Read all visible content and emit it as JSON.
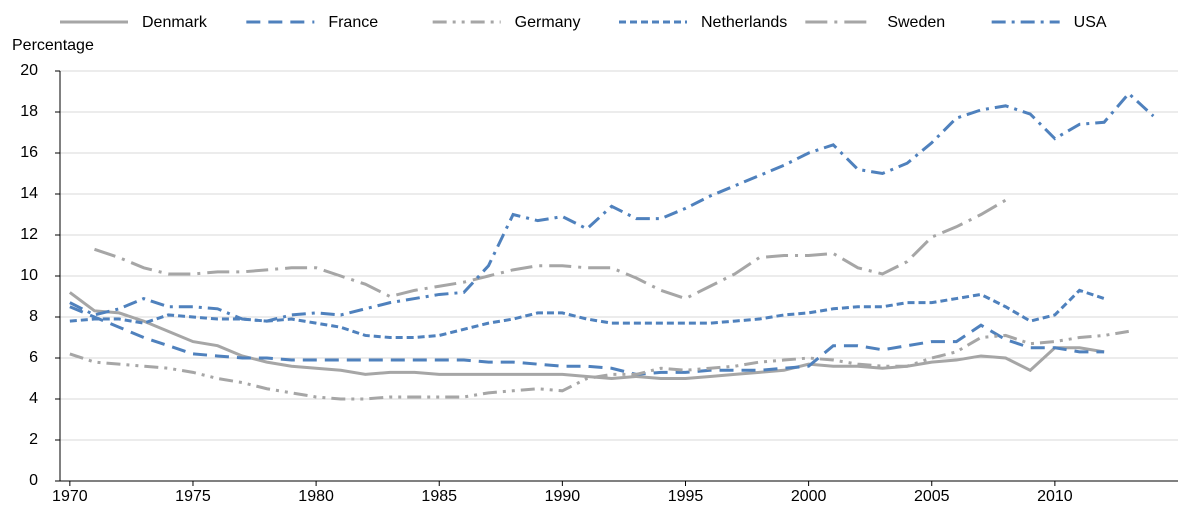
{
  "chart_data": {
    "type": "line",
    "y_label": "Percentage",
    "x": [
      1970,
      1971,
      1972,
      1973,
      1974,
      1975,
      1976,
      1977,
      1978,
      1979,
      1980,
      1981,
      1982,
      1983,
      1984,
      1985,
      1986,
      1987,
      1988,
      1989,
      1990,
      1991,
      1992,
      1993,
      1994,
      1995,
      1996,
      1997,
      1998,
      1999,
      2000,
      2001,
      2002,
      2003,
      2004,
      2005,
      2006,
      2007,
      2008,
      2009,
      2010,
      2011,
      2012,
      2013,
      2014
    ],
    "xlim": [
      1969.6,
      2015
    ],
    "xticks": [
      1970,
      1975,
      1980,
      1985,
      1990,
      1995,
      2000,
      2005,
      2010
    ],
    "ylim": [
      0,
      20
    ],
    "yticks": [
      0,
      2,
      4,
      6,
      8,
      10,
      12,
      14,
      16,
      18,
      20
    ],
    "grid": true,
    "legend": "top",
    "series": [
      {
        "name": "Denmark",
        "color": "#a6a6a6",
        "dash": "solid",
        "values": [
          9.2,
          8.3,
          8.2,
          7.8,
          7.3,
          6.8,
          6.6,
          6.1,
          5.8,
          5.6,
          5.5,
          5.4,
          5.2,
          5.3,
          5.3,
          5.2,
          5.2,
          5.2,
          5.2,
          5.2,
          5.2,
          5.1,
          5.0,
          5.1,
          5.0,
          5.0,
          5.1,
          5.2,
          5.3,
          5.4,
          5.7,
          5.6,
          5.6,
          5.5,
          5.6,
          5.8,
          5.9,
          6.1,
          6.0,
          5.4,
          6.5,
          6.5,
          6.3,
          null,
          null
        ]
      },
      {
        "name": "France",
        "color": "#4f81bd",
        "dash": "dash",
        "values": [
          8.5,
          8.0,
          7.5,
          7.0,
          6.6,
          6.2,
          6.1,
          6.0,
          6.0,
          5.9,
          5.9,
          5.9,
          5.9,
          5.9,
          5.9,
          5.9,
          5.9,
          5.8,
          5.8,
          5.7,
          5.6,
          5.6,
          5.5,
          5.2,
          5.3,
          5.3,
          5.4,
          5.4,
          5.4,
          5.5,
          5.6,
          6.6,
          6.6,
          6.4,
          6.6,
          6.8,
          6.8,
          7.6,
          6.9,
          6.5,
          6.5,
          6.3,
          6.3,
          null,
          null
        ]
      },
      {
        "name": "Germany",
        "color": "#a6a6a6",
        "dash": "dashdotdot",
        "values": [
          6.2,
          5.8,
          5.7,
          5.6,
          5.5,
          5.3,
          5.0,
          4.8,
          4.5,
          4.3,
          4.1,
          4.0,
          4.0,
          4.1,
          4.1,
          4.1,
          4.1,
          4.3,
          4.4,
          4.5,
          4.4,
          5.0,
          5.2,
          5.2,
          5.5,
          5.4,
          5.5,
          5.6,
          5.8,
          5.9,
          6.0,
          5.9,
          5.7,
          5.6,
          5.6,
          6.0,
          6.3,
          7.0,
          7.1,
          6.7,
          6.8,
          7.0,
          7.1,
          7.3,
          null
        ]
      },
      {
        "name": "Netherlands",
        "color": "#4f81bd",
        "dash": "shortdash",
        "values": [
          7.8,
          7.9,
          7.9,
          7.7,
          8.1,
          8.0,
          7.9,
          7.9,
          7.8,
          7.9,
          7.7,
          7.5,
          7.1,
          7.0,
          7.0,
          7.1,
          7.4,
          7.7,
          7.9,
          8.2,
          8.2,
          7.9,
          7.7,
          7.7,
          7.7,
          7.7,
          7.7,
          7.8,
          7.9,
          8.1,
          8.2,
          8.4,
          8.5,
          8.5,
          8.7,
          8.7,
          8.9,
          9.1,
          8.5,
          7.8,
          8.1,
          9.3,
          8.9,
          null,
          null
        ]
      },
      {
        "name": "Sweden",
        "color": "#a6a6a6",
        "dash": "longdashdot",
        "values": [
          null,
          11.3,
          10.9,
          10.4,
          10.1,
          10.1,
          10.2,
          10.2,
          10.3,
          10.4,
          10.4,
          10.0,
          9.6,
          9.0,
          9.3,
          9.5,
          9.7,
          10.0,
          10.3,
          10.5,
          10.5,
          10.4,
          10.4,
          9.9,
          9.3,
          8.9,
          9.5,
          10.1,
          10.9,
          11.0,
          11.0,
          11.1,
          10.4,
          10.1,
          10.7,
          11.9,
          12.4,
          13.0,
          13.7,
          null,
          null,
          null,
          null,
          null,
          null
        ]
      },
      {
        "name": "USA",
        "color": "#4f81bd",
        "dash": "dashdot",
        "values": [
          8.7,
          8.1,
          8.4,
          8.9,
          8.5,
          8.5,
          8.4,
          7.9,
          7.8,
          8.1,
          8.2,
          8.1,
          8.4,
          8.7,
          8.9,
          9.1,
          9.2,
          10.5,
          13.0,
          12.7,
          12.9,
          12.3,
          13.4,
          12.8,
          12.8,
          13.3,
          13.9,
          14.4,
          14.9,
          15.4,
          16.0,
          16.4,
          15.2,
          15.0,
          15.5,
          16.5,
          17.7,
          18.1,
          18.3,
          17.9,
          16.7,
          17.4,
          17.5,
          18.9,
          17.8
        ]
      }
    ]
  }
}
